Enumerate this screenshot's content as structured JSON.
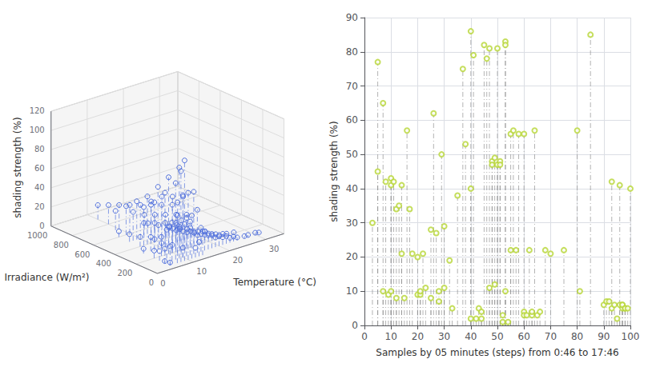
{
  "chart_data": [
    {
      "type": "scatter3d",
      "xlabel": "Temperature (°C)",
      "ylabel": "Irradiance (W/m²)",
      "zlabel": "shading strength (%)",
      "x": [
        5,
        5,
        5,
        5,
        5,
        5,
        5,
        7,
        7,
        7,
        7,
        7,
        7,
        7,
        7,
        8,
        8,
        8,
        8,
        8,
        8,
        9,
        9,
        9,
        9,
        9,
        9,
        9,
        9,
        10,
        10,
        10,
        10,
        10,
        10,
        10,
        10,
        10,
        10,
        10,
        10,
        10,
        10,
        11,
        11,
        11,
        11,
        11,
        11,
        11,
        11,
        12,
        12,
        12,
        12,
        12,
        13,
        13,
        13,
        13,
        13,
        13,
        14,
        14,
        14,
        14,
        14,
        14,
        14,
        15,
        15,
        15,
        15,
        15,
        15,
        16,
        16,
        16,
        16,
        17,
        17,
        17,
        17,
        18,
        18,
        18,
        18,
        18,
        19,
        19,
        19,
        20,
        20,
        20,
        20,
        20,
        21,
        21,
        22,
        22,
        22,
        23,
        23,
        24,
        24,
        25,
        25,
        27,
        27,
        28,
        30,
        31
      ],
      "y": [
        50,
        100,
        150,
        200,
        300,
        50,
        100,
        50,
        100,
        150,
        200,
        300,
        400,
        500,
        600,
        50,
        100,
        200,
        300,
        400,
        500,
        50,
        100,
        200,
        300,
        400,
        500,
        600,
        700,
        50,
        100,
        150,
        200,
        300,
        400,
        500,
        600,
        700,
        800,
        900,
        100,
        200,
        300,
        400,
        50,
        100,
        150,
        200,
        300,
        400,
        500,
        50,
        100,
        150,
        200,
        300,
        50,
        100,
        200,
        300,
        400,
        500,
        50,
        100,
        200,
        300,
        400,
        500,
        600,
        100,
        200,
        300,
        400,
        500,
        600,
        100,
        200,
        300,
        400,
        100,
        200,
        300,
        400,
        100,
        200,
        300,
        400,
        500,
        100,
        200,
        300,
        100,
        200,
        300,
        400,
        500,
        100,
        200,
        100,
        200,
        300,
        100,
        200,
        100,
        200,
        100,
        200,
        100,
        200,
        100,
        100,
        100
      ],
      "z": [
        20,
        15,
        10,
        8,
        5,
        3,
        2,
        50,
        40,
        30,
        20,
        15,
        10,
        8,
        6,
        95,
        80,
        65,
        50,
        40,
        30,
        105,
        95,
        80,
        65,
        50,
        40,
        30,
        20,
        70,
        65,
        55,
        50,
        45,
        40,
        35,
        30,
        25,
        20,
        15,
        10,
        8,
        5,
        3,
        45,
        40,
        35,
        30,
        25,
        20,
        15,
        10,
        35,
        30,
        25,
        20,
        15,
        65,
        55,
        50,
        45,
        35,
        25,
        45,
        35,
        30,
        25,
        20,
        15,
        25,
        20,
        15,
        10,
        8,
        5,
        20,
        15,
        10,
        8,
        15,
        10,
        8,
        5,
        15,
        10,
        8,
        5,
        3,
        10,
        8,
        5,
        10,
        8,
        5,
        3,
        2,
        8,
        5,
        8,
        5,
        3,
        5,
        3,
        5,
        3,
        3,
        2,
        2,
        1,
        2,
        2,
        1
      ],
      "xlim": [
        0,
        35
      ],
      "ylim": [
        0,
        1000
      ],
      "zlim": [
        0,
        120
      ],
      "xticks": [
        0,
        10,
        20,
        30
      ],
      "yticks": [
        0,
        200,
        400,
        600,
        800,
        1000
      ],
      "zticks": [
        0,
        20,
        40,
        60,
        80,
        100,
        120
      ],
      "grid": true,
      "marker": "circle",
      "line_style": "dashdot"
    },
    {
      "type": "scatter",
      "xlabel": "Samples by 05 minutes (steps) from 0:46 to 17:46",
      "ylabel": "shading strength (%)",
      "x": [
        3,
        5,
        5,
        7,
        7,
        8,
        9,
        10,
        10,
        10,
        11,
        12,
        12,
        13,
        14,
        14,
        15,
        16,
        17,
        18,
        20,
        20,
        21,
        21,
        22,
        23,
        25,
        25,
        26,
        27,
        28,
        28,
        29,
        30,
        30,
        32,
        33,
        35,
        37,
        38,
        40,
        40,
        40,
        41,
        42,
        43,
        44,
        44,
        45,
        46,
        47,
        47,
        48,
        48,
        49,
        49,
        50,
        50,
        51,
        51,
        52,
        52,
        53,
        53,
        53,
        54,
        55,
        55,
        56,
        57,
        58,
        60,
        60,
        60,
        61,
        62,
        63,
        63,
        64,
        65,
        66,
        68,
        70,
        75,
        80,
        81,
        85,
        90,
        91,
        92,
        93,
        93,
        94,
        95,
        96,
        96,
        97,
        97,
        97,
        98,
        98,
        99,
        100
      ],
      "values": [
        30,
        45,
        77,
        65,
        10,
        42,
        9,
        43,
        41,
        10,
        42,
        34,
        8,
        35,
        41,
        21,
        8,
        57,
        34,
        21,
        20,
        9,
        9,
        10,
        21,
        11,
        28,
        8,
        62,
        27,
        7,
        10,
        50,
        11,
        29,
        19,
        5,
        38,
        75,
        53,
        86,
        40,
        2,
        79,
        2,
        5,
        2,
        4,
        82,
        78,
        11,
        81,
        48,
        47,
        49,
        12,
        47,
        81,
        48,
        47,
        3,
        1,
        83,
        10,
        82,
        1,
        22,
        56,
        57,
        22,
        56,
        4,
        56,
        3,
        3,
        22,
        3,
        4,
        57,
        3,
        4,
        22,
        21,
        22,
        57,
        10,
        85,
        6,
        7,
        7,
        42,
        5,
        6,
        2,
        6,
        41,
        6,
        5,
        6,
        5,
        5,
        5,
        40
      ],
      "xlim": [
        0,
        100
      ],
      "ylim": [
        0,
        90
      ],
      "xticks": [
        0,
        10,
        20,
        30,
        40,
        50,
        60,
        70,
        80,
        90,
        100
      ],
      "yticks": [
        0,
        10,
        20,
        30,
        40,
        50,
        60,
        70,
        80,
        90
      ],
      "grid": true,
      "marker": "circle",
      "line_style": "dashdot"
    }
  ]
}
